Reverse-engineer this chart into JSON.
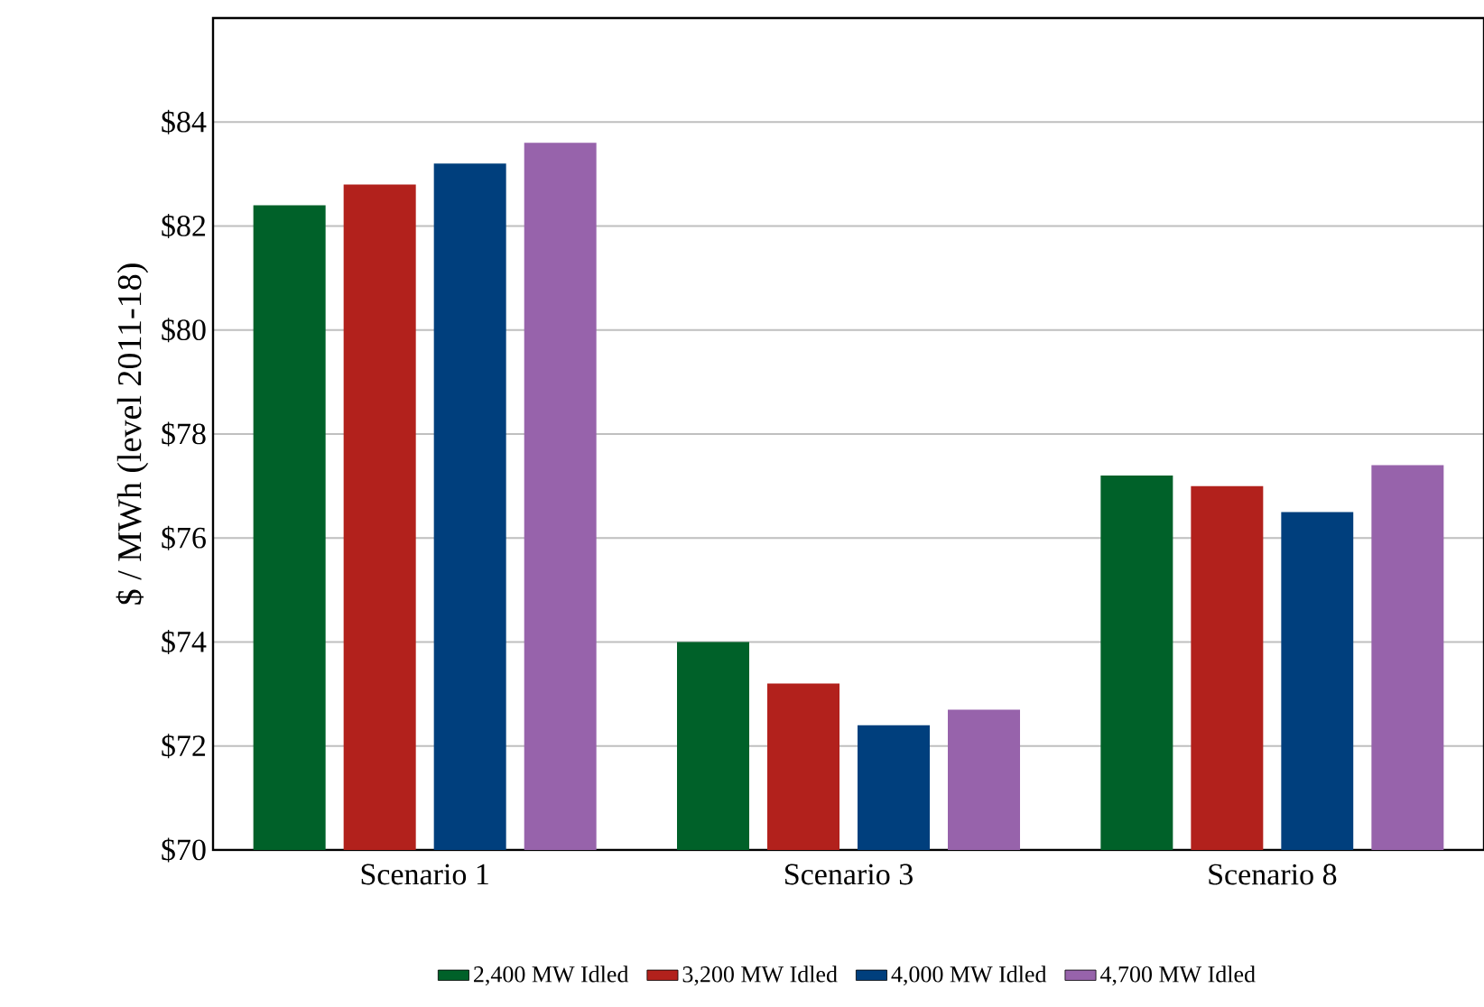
{
  "chart_data": {
    "type": "bar",
    "ylabel": "$ / MWh (level 2011-18)",
    "categories": [
      "Scenario 1",
      "Scenario 3",
      "Scenario 8"
    ],
    "series": [
      {
        "name": "2,400 MW Idled",
        "color": "#006129",
        "values": [
          82.4,
          74.0,
          77.2
        ]
      },
      {
        "name": "3,200 MW Idled",
        "color": "#b2211c",
        "values": [
          82.8,
          73.2,
          77.0
        ]
      },
      {
        "name": "4,000 MW Idled",
        "color": "#003f7d",
        "values": [
          83.2,
          72.4,
          76.5
        ]
      },
      {
        "name": "4,700 MW Idled",
        "color": "#9763ab",
        "values": [
          83.6,
          72.7,
          77.4
        ]
      }
    ],
    "ylim": [
      70,
      86
    ],
    "yticks": [
      {
        "value": 70,
        "label": "$70"
      },
      {
        "value": 72,
        "label": "$72"
      },
      {
        "value": 74,
        "label": "$74"
      },
      {
        "value": 76,
        "label": "$76"
      },
      {
        "value": 78,
        "label": "$78"
      },
      {
        "value": 80,
        "label": "$80"
      },
      {
        "value": 82,
        "label": "$82"
      },
      {
        "value": 84,
        "label": "$84"
      }
    ],
    "grid": "y",
    "legend": "bottom"
  }
}
